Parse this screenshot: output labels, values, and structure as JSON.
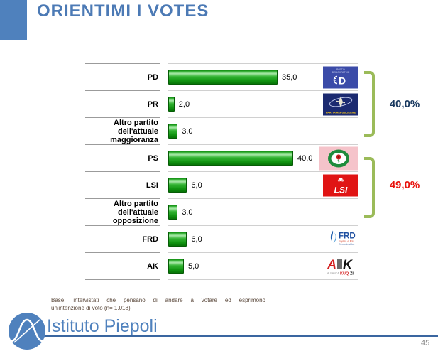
{
  "title": "ORIENTIMI I VOTES",
  "colors": {
    "accent_blue": "#4F81BD",
    "title_blue": "#4C7AB5",
    "line_blue": "#3A66A0",
    "bracket_green": "#9BBB59",
    "group1_navy": "#17375E",
    "group2_red": "#E8120C",
    "footer_text": "#5C4A3D",
    "sep_dark": "#9B9B9B",
    "sep_light": "#D0D0D0",
    "bar_green": "#12A012"
  },
  "chart_data": {
    "type": "bar",
    "orientation": "horizontal",
    "title": "ORIENTIMI I VOTES",
    "categories": [
      "PD",
      "PR",
      "Altro partito dell'attuale maggioranza",
      "PS",
      "LSI",
      "Altro partito dell'attuale opposizione",
      "FRD",
      "AK"
    ],
    "values": [
      35.0,
      2.0,
      3.0,
      40.0,
      6.0,
      3.0,
      6.0,
      5.0
    ],
    "value_labels": [
      "35,0",
      "2,0",
      "3,0",
      "40,0",
      "6,0",
      "3,0",
      "6,0",
      "5,0"
    ],
    "xlim": [
      0,
      50
    ],
    "bar_color": "#12A012",
    "grid": false,
    "groups": [
      {
        "label": "40,0%",
        "color": "#17375E",
        "members": [
          "PD",
          "PR",
          "Altro partito dell'attuale maggioranza"
        ]
      },
      {
        "label": "49,0%",
        "color": "#E8120C",
        "members": [
          "PS",
          "LSI",
          "Altro partito dell'attuale opposizione"
        ]
      }
    ]
  },
  "logos": {
    "pd": {
      "caption_line1": "PARTIA",
      "caption_line2": "DEMOKRATIKE",
      "letter": "D"
    },
    "pr": {
      "caption": "PARTIA REPUBLIKANE"
    },
    "lsi": {
      "text": "LSI"
    },
    "frd": {
      "text": "FRD",
      "caption_line1": "Fryma e Re",
      "caption_line2": "Demokratike"
    },
    "ak": {
      "letter_a": "A",
      "letter_k": "K",
      "caption_gray": "ALEANCA",
      "caption_red": "KUQ",
      "caption_black": "ZI"
    }
  },
  "footer": {
    "line1": "Base: intervistati che pensano di andare a votare ed esprimono",
    "line2": "un'intenzione di voto  (n= 1.018)"
  },
  "brand": {
    "name": "Istituto Piepoli"
  },
  "page_number": "45"
}
